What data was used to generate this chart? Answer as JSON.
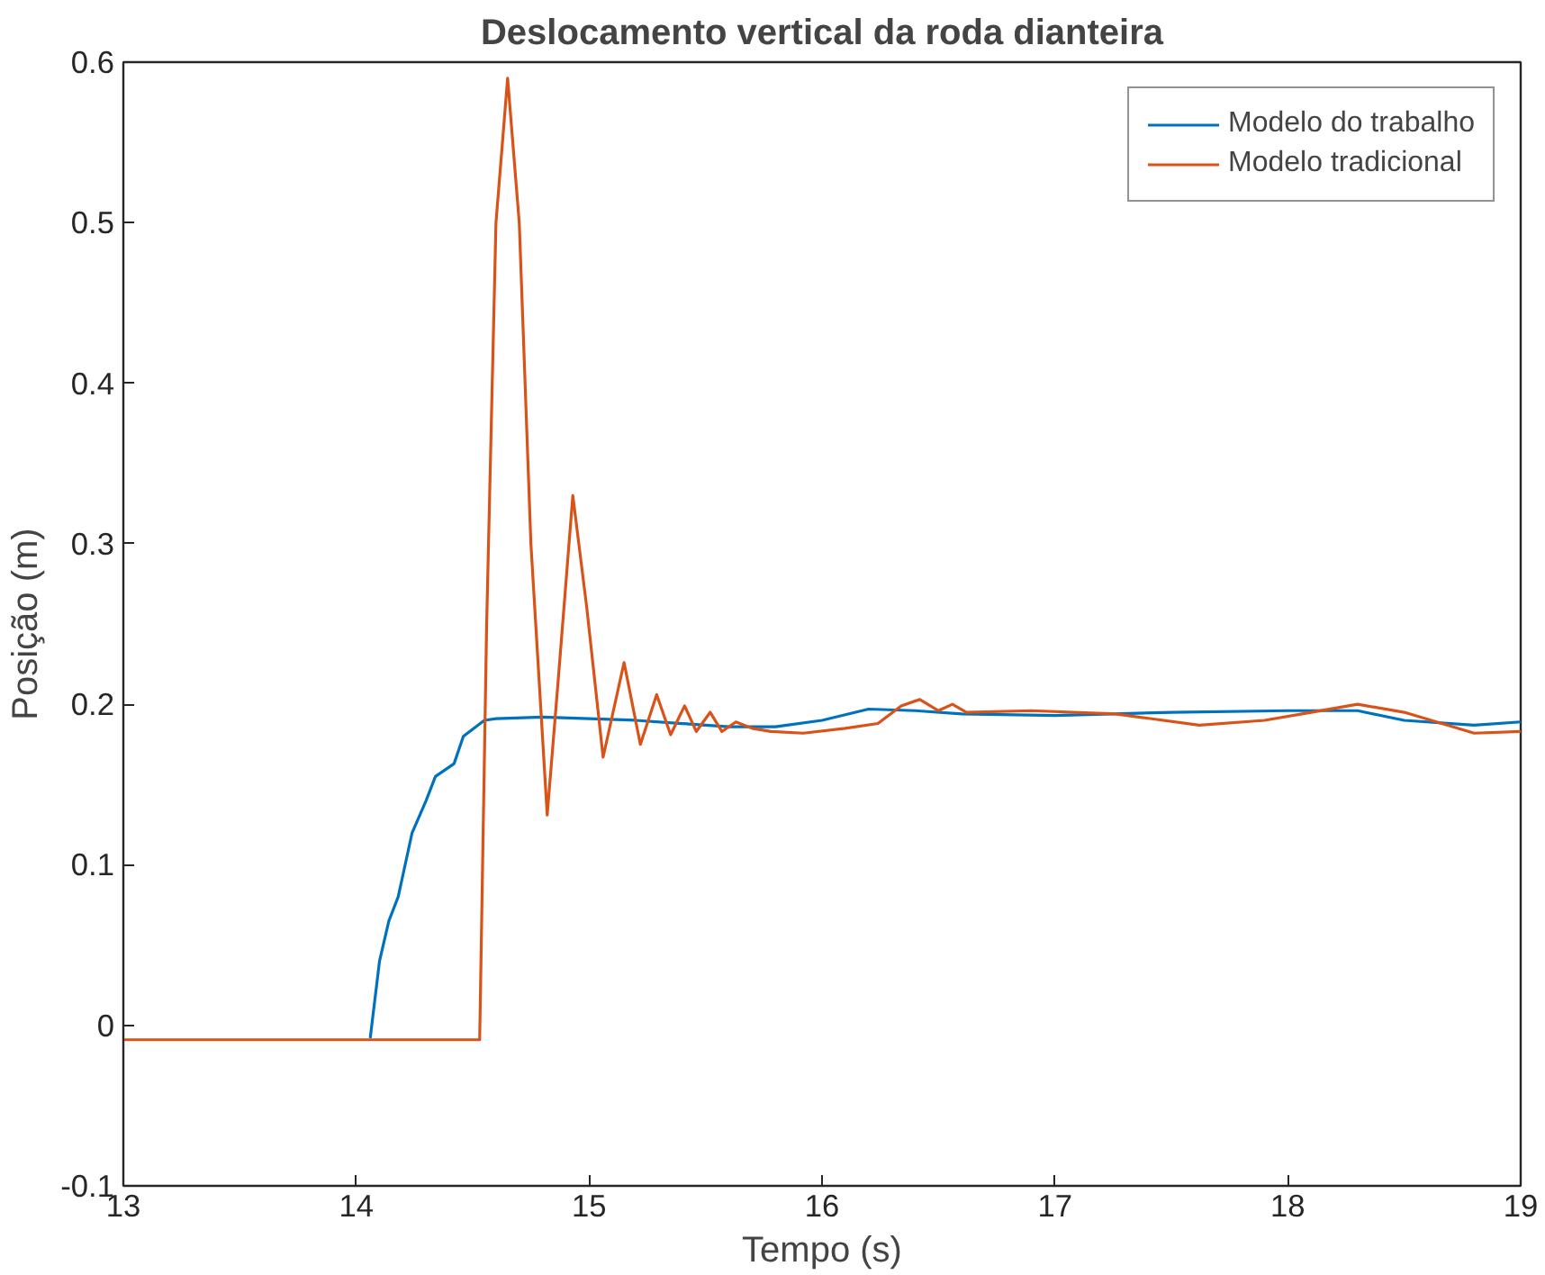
{
  "chart_data": {
    "type": "line",
    "title": "Deslocamento vertical da roda dianteira",
    "xlabel": "Tempo (s)",
    "ylabel": "Posição (m)",
    "xlim": [
      13,
      19
    ],
    "ylim": [
      -0.1,
      0.6
    ],
    "xticks": [
      13,
      14,
      15,
      16,
      17,
      18,
      19
    ],
    "yticks": [
      -0.1,
      0,
      0.1,
      0.2,
      0.3,
      0.4,
      0.5,
      0.6
    ],
    "grid": false,
    "legend": "top right",
    "marker": "none",
    "line_style": "solid",
    "series": [
      {
        "name": "Modelo do trabalho",
        "color": "#0072bd",
        "x": [
          14.06,
          14.1,
          14.14,
          14.18,
          14.24,
          14.3,
          14.34,
          14.42,
          14.46,
          14.55,
          14.6,
          14.8,
          15.0,
          15.2,
          15.4,
          15.6,
          15.8,
          16.0,
          16.2,
          16.4,
          16.6,
          17.0,
          17.5,
          18.0,
          18.3,
          18.5,
          18.8,
          19
        ],
        "values": [
          -0.008,
          0.04,
          0.065,
          0.08,
          0.12,
          0.14,
          0.155,
          0.163,
          0.18,
          0.19,
          0.191,
          0.192,
          0.191,
          0.19,
          0.188,
          0.186,
          0.186,
          0.19,
          0.197,
          0.196,
          0.194,
          0.193,
          0.195,
          0.196,
          0.196,
          0.19,
          0.187,
          0.189
        ]
      },
      {
        "name": "Modelo tradicional",
        "color": "#d95319",
        "x": [
          13,
          14.53,
          14.56,
          14.6,
          14.65,
          14.7,
          14.75,
          14.82,
          14.87,
          14.93,
          14.99,
          15.06,
          15.15,
          15.22,
          15.29,
          15.35,
          15.41,
          15.46,
          15.52,
          15.57,
          15.63,
          15.7,
          15.78,
          15.92,
          16.1,
          16.24,
          16.34,
          16.42,
          16.5,
          16.56,
          16.62,
          16.9,
          17.26,
          17.62,
          17.9,
          18.1,
          18.3,
          18.5,
          18.8,
          19
        ],
        "values": [
          -0.009,
          -0.009,
          0.25,
          0.5,
          0.59,
          0.5,
          0.3,
          0.131,
          0.22,
          0.33,
          0.26,
          0.167,
          0.226,
          0.175,
          0.206,
          0.181,
          0.199,
          0.183,
          0.195,
          0.183,
          0.189,
          0.185,
          0.183,
          0.182,
          0.185,
          0.188,
          0.199,
          0.203,
          0.196,
          0.2,
          0.195,
          0.196,
          0.194,
          0.187,
          0.19,
          0.195,
          0.2,
          0.195,
          0.182,
          0.183
        ]
      }
    ]
  }
}
